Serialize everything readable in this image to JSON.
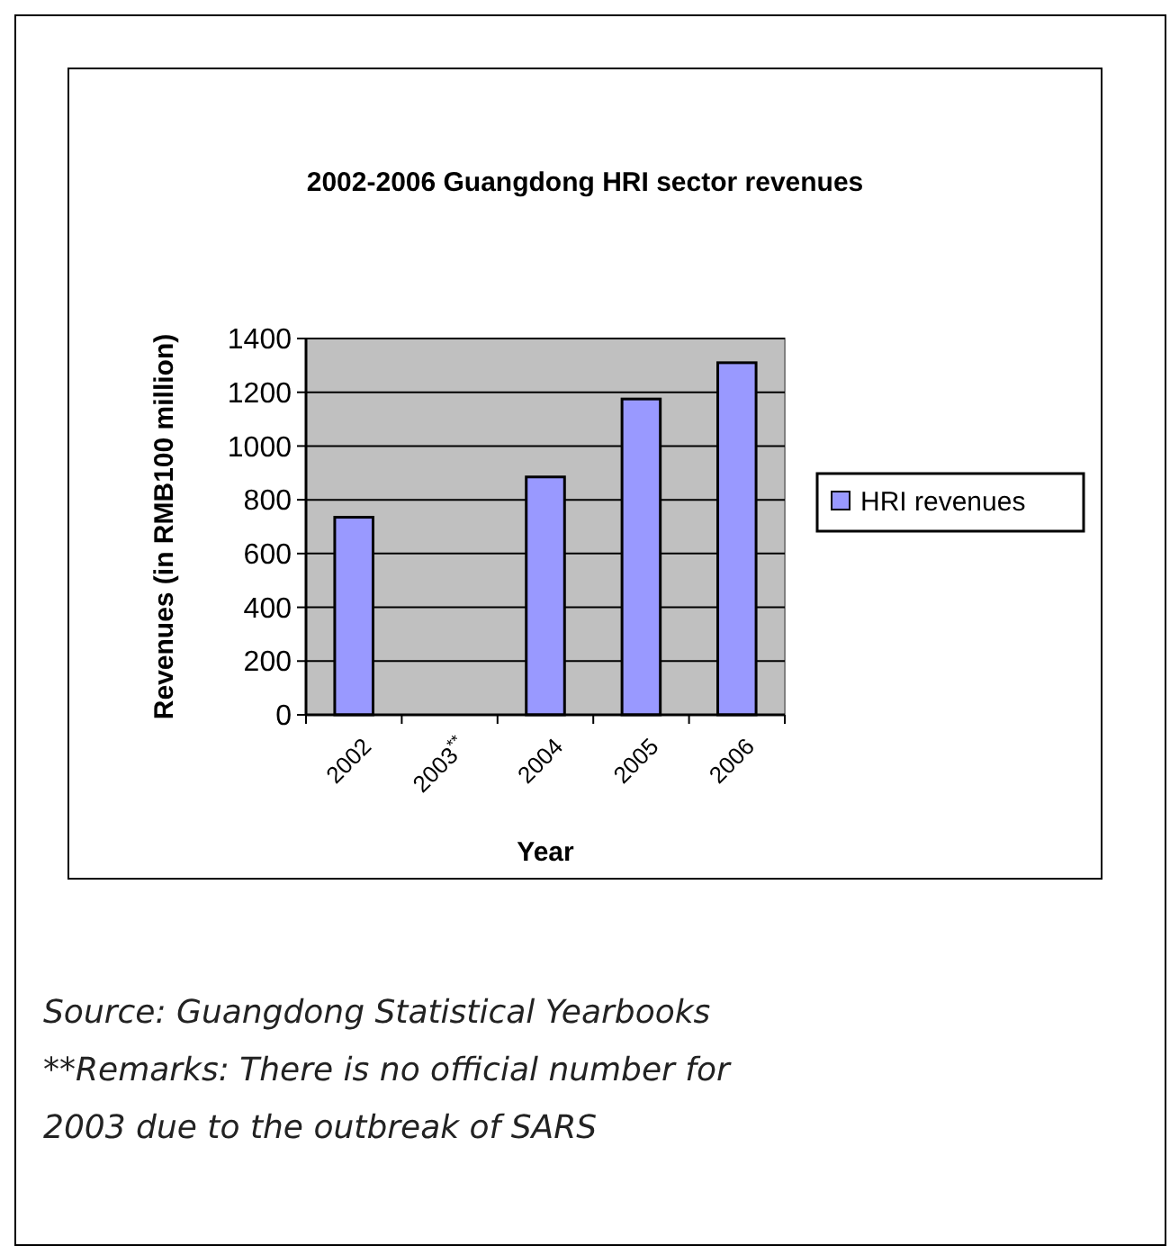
{
  "chart_data": {
    "type": "bar",
    "title": "2002-2006 Guangdong HRI sector revenues",
    "xlabel": "Year",
    "ylabel": "Revenues (in RMB100 million)",
    "categories": [
      "2002",
      "2003$^{**}$",
      "2004",
      "2005",
      "2006"
    ],
    "series": [
      {
        "name": "HRI revenues",
        "color": "#9999ff",
        "values": [
          735,
          null,
          885,
          1175,
          1310
        ]
      }
    ],
    "ylim": [
      0,
      1400
    ],
    "yticks": [
      0,
      200,
      400,
      600,
      800,
      1000,
      1200,
      1400
    ],
    "grid": "y",
    "legend": "right",
    "annotations": [
      "Source: Guangdong Statistical Yearbooks",
      "**Remarks: There is no official number for 2003 due to the outbreak of SARS"
    ]
  }
}
